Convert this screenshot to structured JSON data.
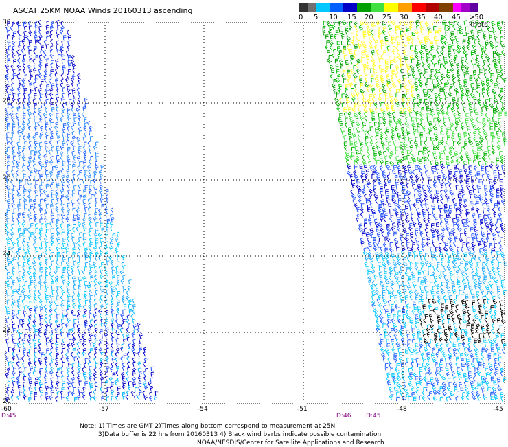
{
  "title": "ASCAT 25KM NOAA Winds 20160313 ascending",
  "legend": {
    "labels": [
      "0",
      "5",
      "10",
      "15",
      "20",
      "25",
      "30",
      "35",
      "40",
      "45",
      ">50 knots"
    ],
    "colors": [
      "#333333",
      "#707070",
      "#00c8ff",
      "#0060ff",
      "#0000c8",
      "#00a000",
      "#40e040",
      "#ffff00",
      "#ffa000",
      "#ff0000",
      "#b00000",
      "#804000",
      "#ff00ff",
      "#a000c8",
      "#6000a0"
    ]
  },
  "axes": {
    "lat_labels": [
      "30",
      "28",
      "26",
      "24",
      "22",
      "20"
    ],
    "lon_labels": [
      "-60",
      "-57",
      "-54",
      "-51",
      "-48",
      "-45"
    ]
  },
  "times": {
    "left": "D:45",
    "right1": "D:46",
    "right2": "D:45"
  },
  "notes": [
    "Note: 1) Times are GMT 2)Times along bottom correspond to measurement at 25N",
    "3)Data buffer is 22 hrs from 20160313 4) Black wind barbs indicate possible contamination",
    "NOAA/NESDIS/Center for Satellite Applications and Research"
  ]
}
